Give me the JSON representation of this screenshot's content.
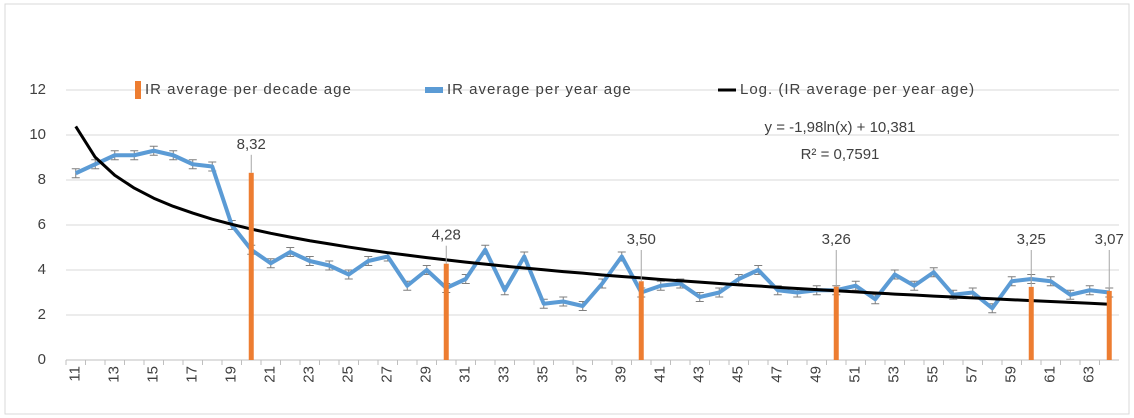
{
  "chart_data": {
    "type": "combo",
    "categories": [
      "11",
      null,
      "13",
      null,
      "15",
      null,
      "17",
      null,
      "19",
      null,
      "21",
      null,
      "23",
      null,
      "25",
      null,
      "27",
      null,
      "29",
      null,
      "31",
      null,
      "33",
      null,
      "35",
      null,
      "37",
      null,
      "39",
      null,
      "41",
      null,
      "43",
      null,
      "45",
      null,
      "47",
      null,
      "49",
      null,
      "51",
      null,
      "53",
      null,
      "55",
      null,
      "57",
      null,
      "59",
      null,
      "61",
      null,
      "63",
      null
    ],
    "series": [
      {
        "name": "IR average per decade age",
        "kind": "bar",
        "color": "#ed7d31",
        "values": [
          null,
          null,
          null,
          null,
          null,
          null,
          null,
          null,
          null,
          8.32,
          null,
          null,
          null,
          null,
          null,
          null,
          null,
          null,
          null,
          4.28,
          null,
          null,
          null,
          null,
          null,
          null,
          null,
          null,
          null,
          3.5,
          null,
          null,
          null,
          null,
          null,
          null,
          null,
          null,
          null,
          3.26,
          null,
          null,
          null,
          null,
          null,
          null,
          null,
          null,
          null,
          3.25,
          null,
          null,
          null,
          3.07
        ],
        "value_labels": [
          null,
          null,
          null,
          null,
          null,
          null,
          null,
          null,
          null,
          "8,32",
          null,
          null,
          null,
          null,
          null,
          null,
          null,
          null,
          null,
          "4,28",
          null,
          null,
          null,
          null,
          null,
          null,
          null,
          null,
          null,
          "3,50",
          null,
          null,
          null,
          null,
          null,
          null,
          null,
          null,
          null,
          "3,26",
          null,
          null,
          null,
          null,
          null,
          null,
          null,
          null,
          null,
          "3,25",
          null,
          null,
          null,
          "3,07"
        ]
      },
      {
        "name": "IR average per year age",
        "kind": "line",
        "color": "#5b9bd5",
        "values": [
          8.3,
          8.7,
          9.1,
          9.1,
          9.3,
          9.1,
          8.7,
          8.6,
          6.0,
          4.9,
          4.3,
          4.8,
          4.4,
          4.2,
          3.8,
          4.4,
          4.6,
          3.3,
          4.0,
          3.2,
          3.6,
          4.9,
          3.1,
          4.6,
          2.5,
          2.6,
          2.4,
          3.4,
          4.6,
          3.0,
          3.3,
          3.4,
          2.8,
          3.0,
          3.6,
          4.0,
          3.1,
          3.0,
          3.1,
          3.1,
          3.3,
          2.7,
          3.8,
          3.3,
          3.9,
          2.9,
          3.0,
          2.3,
          3.5,
          3.6,
          3.5,
          2.9,
          3.1,
          3.0
        ],
        "errors": [
          0.2,
          0.2,
          0.2,
          0.2,
          0.2,
          0.2,
          0.2,
          0.2,
          0.2,
          0.2,
          0.2,
          0.2,
          0.2,
          0.2,
          0.2,
          0.2,
          0.2,
          0.2,
          0.2,
          0.2,
          0.2,
          0.2,
          0.2,
          0.2,
          0.2,
          0.2,
          0.2,
          0.2,
          0.2,
          0.2,
          0.2,
          0.2,
          0.2,
          0.2,
          0.2,
          0.2,
          0.2,
          0.2,
          0.2,
          0.2,
          0.2,
          0.2,
          0.2,
          0.2,
          0.2,
          0.2,
          0.2,
          0.2,
          0.2,
          0.2,
          0.2,
          0.2,
          0.2,
          0.2
        ]
      },
      {
        "name": "Log. (IR average per year age)",
        "kind": "trend",
        "color": "#000000",
        "values": [
          10.38,
          9.01,
          8.21,
          7.64,
          7.19,
          6.83,
          6.53,
          6.26,
          6.03,
          5.82,
          5.63,
          5.46,
          5.3,
          5.16,
          5.02,
          4.89,
          4.77,
          4.66,
          4.55,
          4.45,
          4.35,
          4.26,
          4.17,
          4.09,
          4.01,
          3.93,
          3.86,
          3.78,
          3.71,
          3.65,
          3.58,
          3.52,
          3.46,
          3.4,
          3.34,
          3.29,
          3.23,
          3.18,
          3.13,
          3.08,
          3.03,
          2.98,
          2.93,
          2.89,
          2.84,
          2.8,
          2.76,
          2.72,
          2.68,
          2.64,
          2.6,
          2.56,
          2.52,
          2.48
        ]
      }
    ],
    "annotations": [
      "y = -1,98ln(x) + 10,381",
      "R² = 0,7591"
    ],
    "ylim": [
      0,
      12
    ],
    "yticks": [
      0,
      2,
      4,
      6,
      8,
      10,
      12
    ],
    "grid": true,
    "legend": "top"
  }
}
